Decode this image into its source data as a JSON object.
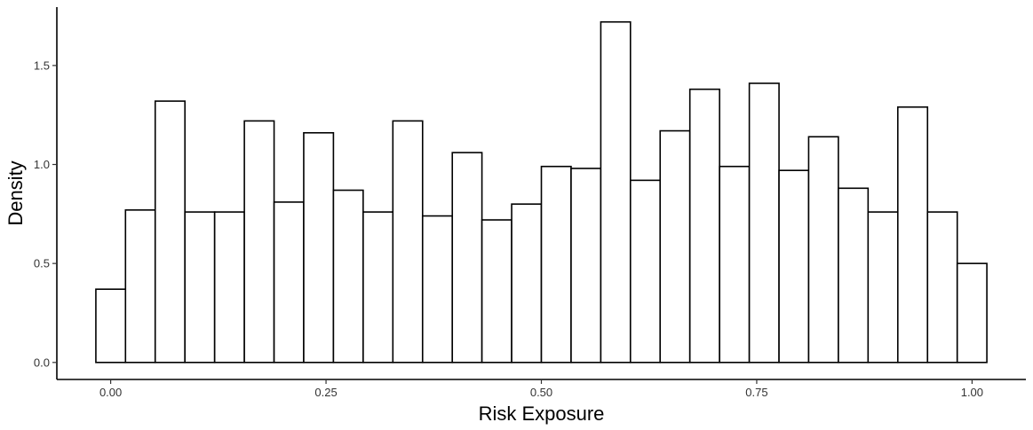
{
  "chart_data": {
    "type": "bar",
    "xlabel": "Risk Exposure",
    "ylabel": "Density",
    "xlim": [
      -0.0625,
      1.0625
    ],
    "ylim": [
      -0.086,
      1.795
    ],
    "x_ticks": [
      0.0,
      0.25,
      0.5,
      0.75,
      1.0
    ],
    "x_tick_labels": [
      "0.00",
      "0.25",
      "0.50",
      "0.75",
      "1.00"
    ],
    "y_ticks": [
      0.0,
      0.5,
      1.0,
      1.5
    ],
    "y_tick_labels": [
      "0.0",
      "0.5",
      "1.0",
      "1.5"
    ],
    "bin_width": 0.0345,
    "bin_edges": [
      -0.0172,
      0.0172,
      0.0517,
      0.0862,
      0.1207,
      0.1552,
      0.1897,
      0.2241,
      0.2586,
      0.2931,
      0.3276,
      0.3621,
      0.3966,
      0.431,
      0.4655,
      0.5,
      0.5345,
      0.569,
      0.6034,
      0.6379,
      0.6724,
      0.7069,
      0.7414,
      0.7759,
      0.8103,
      0.8448,
      0.8793,
      0.9138,
      0.9483,
      0.9828,
      1.0172
    ],
    "values": [
      0.37,
      0.77,
      1.32,
      0.76,
      0.76,
      1.22,
      0.81,
      1.16,
      0.87,
      0.76,
      1.22,
      0.74,
      1.06,
      0.72,
      0.8,
      0.99,
      0.98,
      1.72,
      0.92,
      1.17,
      1.38,
      0.99,
      1.41,
      0.97,
      1.14,
      0.88,
      0.76,
      1.29,
      0.76,
      0.5
    ],
    "grid": false,
    "legend": "none",
    "bar_fill": "#ffffff",
    "bar_stroke": "#000000"
  }
}
